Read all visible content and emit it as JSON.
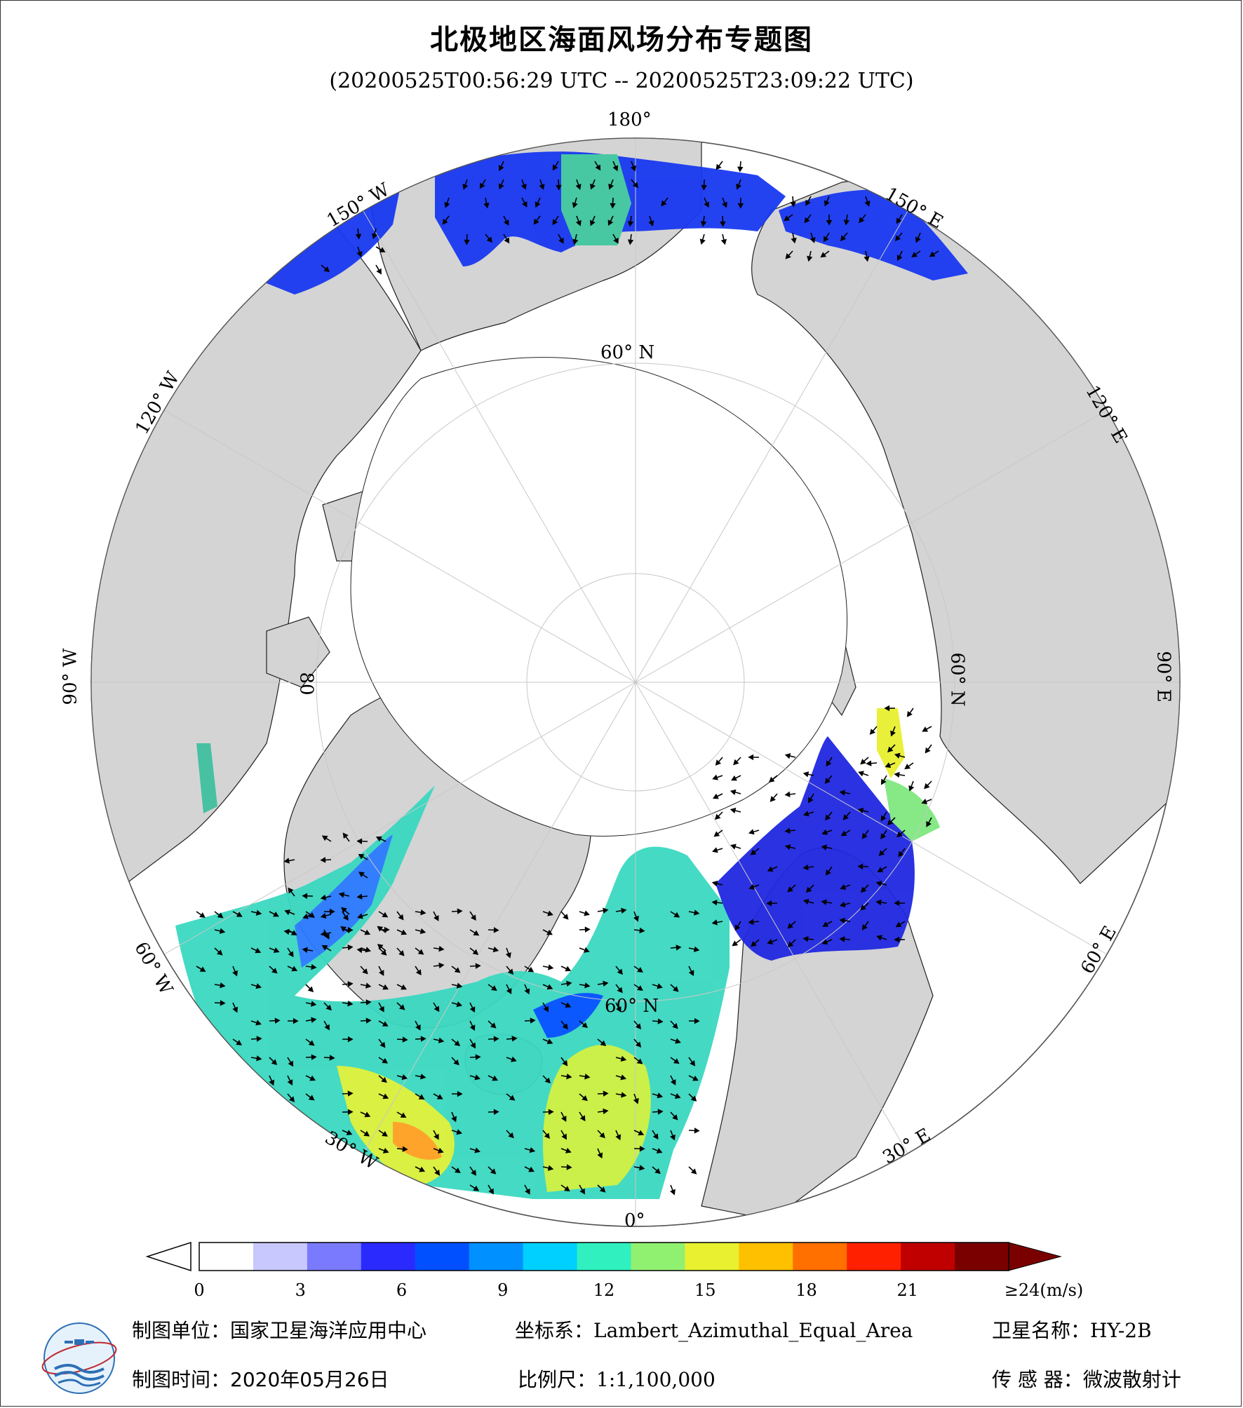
{
  "title": "北极地区海面风场分布专题图",
  "subtitle": "(20200525T00:56:29 UTC -- 20200525T23:09:22 UTC)",
  "graticule_labels": {
    "lon_180": "180°",
    "lon_150w": "150° W",
    "lon_150e": "150° E",
    "lon_120w": "120° W",
    "lon_120e": "120° E",
    "lon_90w": "90° W",
    "lon_90e": "90° E",
    "lon_60w": "60° W",
    "lon_60e": "60° E",
    "lon_30w": "30° W",
    "lon_30e": "30° E",
    "lon_0": "0°",
    "lat_60_top": "60° N",
    "lat_60_right": "60° N",
    "lat_60_left": "80",
    "lat_60_bottom": "60° N"
  },
  "colorbar": {
    "ticks": [
      "0",
      "3",
      "6",
      "9",
      "12",
      "15",
      "18",
      "21",
      "≥24(m/s)"
    ],
    "tick_values": [
      0,
      3,
      6,
      9,
      12,
      15,
      18,
      21,
      24
    ],
    "range": [
      0,
      24
    ],
    "unit": "m/s",
    "colors": [
      "#ffffff",
      "#c8c8ff",
      "#7a7aff",
      "#2a2aff",
      "#0050ff",
      "#0090ff",
      "#00d0ff",
      "#30f0c0",
      "#90f070",
      "#e8f030",
      "#ffc000",
      "#ff7000",
      "#ff2000",
      "#c00000",
      "#7a0000"
    ],
    "under_color": "#ffffff",
    "over_color": "#7a0000"
  },
  "colors": {
    "land": "#d4d4d4",
    "ice": "#ffffff",
    "graticule": "#bbbbbb",
    "arrow": "#000000"
  },
  "footer": {
    "unit_label": "制图单位：",
    "unit_value": "国家卫星海洋应用中心",
    "crs_label": "坐标系：",
    "crs_value": "Lambert_Azimuthal_Equal_Area",
    "satellite_label": "卫星名称：",
    "satellite_value": "HY-2B",
    "date_label": "制图时间：",
    "date_value": "2020年05月26日",
    "scale_label": "比例尺：",
    "scale_value": "1:1,100,000",
    "sensor_label": "传 感 器：",
    "sensor_value": "微波散射计"
  },
  "icons": {
    "logo": "nsoas-logo"
  }
}
